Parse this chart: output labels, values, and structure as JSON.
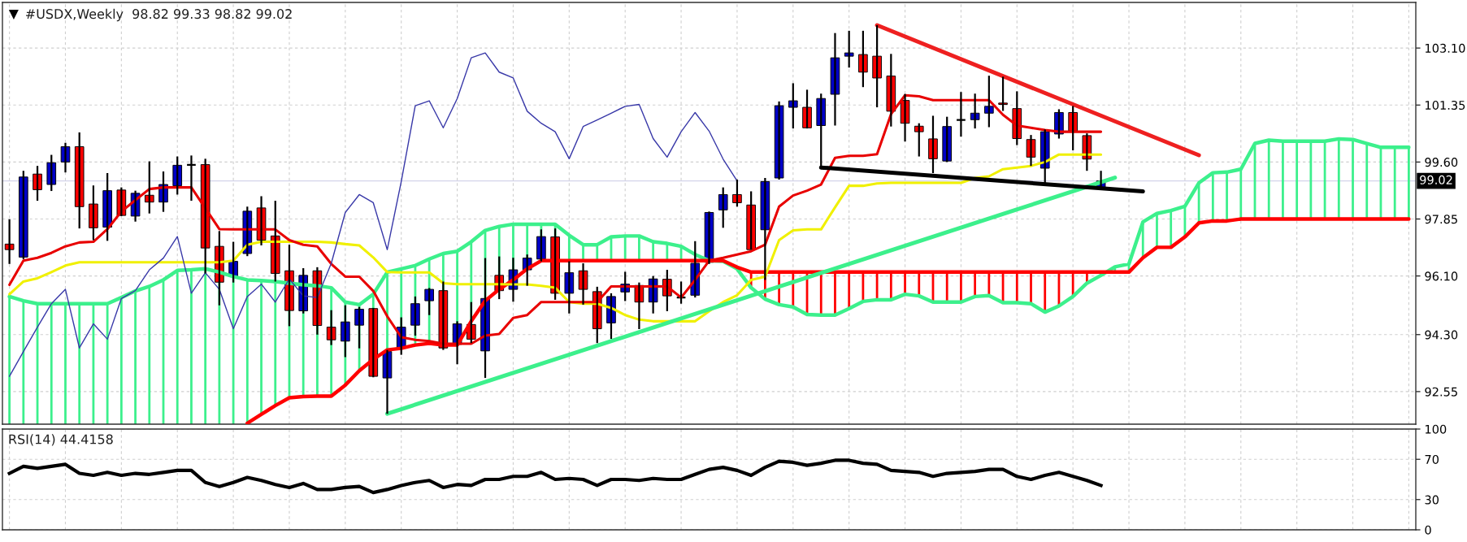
{
  "chart_data": [
    {
      "type": "candlestick",
      "title": "#USDX,Weekly  98.82 99.33 98.82 99.02",
      "categories": [
        null,
        null,
        null,
        null,
        null,
        null,
        null,
        null,
        null,
        null,
        null,
        null,
        null,
        null,
        null,
        null,
        null,
        null,
        null,
        null,
        null,
        null,
        null,
        null,
        null,
        null,
        null,
        null,
        null,
        null,
        null,
        null,
        null,
        null,
        null,
        null,
        null,
        null,
        null,
        null,
        null,
        null,
        null,
        null,
        null,
        null,
        null,
        null,
        null,
        null,
        null,
        null,
        null,
        null,
        null,
        null,
        null,
        null,
        null,
        null,
        null,
        null,
        null,
        null,
        null,
        null,
        null,
        null,
        null,
        null,
        null,
        null,
        null,
        null,
        null,
        null,
        null,
        null,
        null,
        null,
        null,
        null,
        null,
        null,
        null,
        null,
        null,
        null,
        null,
        null,
        null,
        null,
        null,
        null,
        null,
        null,
        null,
        null,
        null,
        null,
        null
      ],
      "ohlc": [
        [
          97.08,
          97.84,
          96.47,
          96.91
        ],
        [
          96.68,
          99.33,
          96.62,
          99.14
        ],
        [
          99.23,
          99.48,
          98.41,
          98.75
        ],
        [
          98.91,
          99.82,
          98.71,
          99.58
        ],
        [
          99.6,
          100.19,
          99.28,
          100.07
        ],
        [
          100.07,
          100.51,
          97.56,
          98.23
        ],
        [
          98.31,
          98.88,
          97.2,
          97.58
        ],
        [
          97.6,
          99.26,
          97.18,
          98.72
        ],
        [
          98.74,
          98.82,
          97.94,
          97.96
        ],
        [
          97.94,
          98.72,
          97.77,
          98.64
        ],
        [
          98.58,
          99.62,
          98.02,
          98.37
        ],
        [
          98.37,
          99.31,
          98.07,
          98.91
        ],
        [
          98.87,
          99.77,
          98.6,
          99.5
        ],
        [
          99.51,
          99.8,
          98.41,
          99.51
        ],
        [
          99.52,
          99.7,
          96.18,
          96.96
        ],
        [
          97.01,
          97.48,
          95.2,
          95.91
        ],
        [
          96.08,
          97.15,
          95.9,
          96.55
        ],
        [
          96.79,
          98.23,
          96.71,
          98.09
        ],
        [
          98.19,
          98.55,
          97.04,
          97.2
        ],
        [
          97.33,
          98.41,
          95.93,
          96.18
        ],
        [
          96.26,
          97.06,
          94.56,
          95.04
        ],
        [
          95.03,
          96.34,
          94.95,
          96.12
        ],
        [
          96.26,
          96.37,
          94.3,
          94.58
        ],
        [
          94.53,
          95.05,
          93.98,
          94.14
        ],
        [
          94.1,
          95.2,
          93.61,
          94.69
        ],
        [
          94.59,
          95.15,
          93.88,
          95.08
        ],
        [
          95.1,
          95.12,
          92.99,
          93.02
        ],
        [
          92.97,
          93.83,
          91.87,
          93.78
        ],
        [
          93.88,
          94.83,
          93.68,
          94.53
        ],
        [
          94.59,
          95.47,
          94.27,
          95.25
        ],
        [
          95.34,
          95.73,
          94.9,
          95.69
        ],
        [
          95.65,
          95.93,
          93.83,
          93.89
        ],
        [
          94.0,
          94.71,
          93.39,
          94.63
        ],
        [
          94.61,
          95.3,
          94.04,
          94.16
        ],
        [
          93.8,
          96.65,
          92.97,
          95.41
        ],
        [
          96.12,
          96.7,
          95.39,
          95.65
        ],
        [
          95.69,
          96.66,
          95.31,
          96.29
        ],
        [
          96.29,
          96.76,
          95.8,
          96.65
        ],
        [
          96.62,
          97.53,
          96.55,
          97.31
        ],
        [
          97.3,
          97.56,
          95.37,
          95.57
        ],
        [
          95.57,
          96.55,
          94.95,
          96.2
        ],
        [
          96.26,
          96.49,
          95.22,
          95.69
        ],
        [
          95.62,
          95.77,
          94.04,
          94.48
        ],
        [
          94.66,
          95.57,
          94.17,
          95.47
        ],
        [
          95.61,
          96.23,
          95.33,
          95.85
        ],
        [
          95.81,
          95.9,
          94.47,
          95.3
        ],
        [
          95.3,
          96.1,
          94.95,
          96.01
        ],
        [
          96.0,
          96.29,
          95.02,
          95.49
        ],
        [
          95.44,
          95.93,
          95.25,
          95.44
        ],
        [
          95.51,
          97.17,
          95.44,
          96.49
        ],
        [
          96.52,
          98.08,
          96.47,
          98.05
        ],
        [
          98.13,
          98.82,
          97.58,
          98.6
        ],
        [
          98.6,
          99.06,
          98.23,
          98.35
        ],
        [
          98.28,
          98.7,
          96.91,
          96.91
        ],
        [
          97.52,
          99.11,
          95.98,
          99.0
        ],
        [
          99.11,
          101.46,
          99.06,
          101.33
        ],
        [
          101.28,
          102.02,
          100.63,
          101.48
        ],
        [
          101.28,
          101.82,
          100.63,
          100.65
        ],
        [
          100.72,
          101.7,
          99.45,
          101.55
        ],
        [
          101.68,
          103.56,
          100.72,
          102.8
        ],
        [
          102.85,
          103.63,
          102.5,
          102.95
        ],
        [
          102.9,
          103.63,
          101.9,
          102.36
        ],
        [
          102.85,
          103.8,
          101.28,
          102.18
        ],
        [
          102.24,
          102.92,
          100.69,
          101.16
        ],
        [
          101.49,
          101.69,
          100.23,
          100.79
        ],
        [
          100.7,
          100.79,
          99.77,
          100.53
        ],
        [
          100.31,
          101.02,
          99.26,
          99.7
        ],
        [
          99.63,
          100.99,
          99.6,
          100.69
        ],
        [
          100.89,
          101.75,
          100.38,
          100.89
        ],
        [
          100.9,
          101.7,
          100.63,
          101.1
        ],
        [
          101.1,
          102.25,
          100.67,
          101.31
        ],
        [
          101.41,
          102.22,
          101.17,
          101.37
        ],
        [
          101.24,
          101.77,
          100.12,
          100.32
        ],
        [
          100.29,
          100.43,
          99.48,
          99.75
        ],
        [
          99.41,
          100.6,
          98.95,
          100.53
        ],
        [
          100.46,
          101.22,
          100.32,
          101.12
        ],
        [
          101.12,
          101.32,
          99.96,
          100.55
        ],
        [
          100.41,
          100.48,
          99.33,
          99.69
        ],
        [
          98.82,
          99.33,
          98.82,
          99.02
        ],
        null,
        null,
        null,
        null,
        null,
        null,
        null,
        null,
        null,
        null,
        null,
        null,
        null,
        null,
        null,
        null,
        null,
        null,
        null,
        null,
        null,
        null
      ],
      "colors": [
        "#ff0000",
        "#0000c8",
        "#ff0000",
        "#0000c8",
        "#0000c8",
        "#ff0000",
        "#ff0000",
        "#0000c8",
        "#ff0000",
        "#0000c8",
        "#ff0000",
        "#0000c8",
        "#0000c8",
        "#000000",
        "#ff0000",
        "#ff0000",
        "#0000c8",
        "#0000c8",
        "#ff0000",
        "#ff0000",
        "#ff0000",
        "#0000c8",
        "#ff0000",
        "#ff0000",
        "#0000c8",
        "#0000c8",
        "#ff0000",
        "#0000c8",
        "#0000c8",
        "#0000c8",
        "#0000c8",
        "#ff0000",
        "#0000c8",
        "#ff0000",
        "#0000c8",
        "#ff0000",
        "#0000c8",
        "#0000c8",
        "#0000c8",
        "#ff0000",
        "#0000c8",
        "#ff0000",
        "#ff0000",
        "#0000c8",
        "#0000c8",
        "#ff0000",
        "#0000c8",
        "#ff0000",
        "#000000",
        "#0000c8",
        "#0000c8",
        "#0000c8",
        "#ff0000",
        "#ff0000",
        "#0000c8",
        "#0000c8",
        "#0000c8",
        "#ff0000",
        "#0000c8",
        "#0000c8",
        "#0000c8",
        "#ff0000",
        "#ff0000",
        "#ff0000",
        "#ff0000",
        "#ff0000",
        "#ff0000",
        "#0000c8",
        "#000000",
        "#0000c8",
        "#0000c8",
        "#ff0000",
        "#ff0000",
        "#ff0000",
        "#0000c8",
        "#0000c8",
        "#ff0000",
        "#ff0000",
        "#0000c8",
        null,
        null,
        null,
        null,
        null,
        null,
        null,
        null,
        null,
        null,
        null,
        null,
        null,
        null,
        null,
        null,
        null,
        null,
        null,
        null,
        null,
        null
      ],
      "series": [
        {
          "type": "line",
          "color": "#3cf08c",
          "values": [
            95.47,
            95.34,
            95.25,
            95.25,
            95.25,
            95.25,
            95.25,
            95.25,
            95.44,
            95.64,
            95.78,
            95.98,
            96.27,
            96.29,
            96.32,
            96.22,
            96.08,
            95.98,
            95.96,
            95.93,
            95.88,
            95.83,
            95.8,
            95.74,
            95.3,
            95.22,
            95.54,
            96.22,
            96.32,
            96.42,
            96.62,
            96.79,
            96.86,
            97.15,
            97.5,
            97.62,
            97.69,
            97.69,
            97.69,
            97.69,
            97.35,
            97.06,
            97.06,
            97.3,
            97.33,
            97.33,
            97.15,
            97.1,
            97.01,
            96.76,
            96.57,
            96.55,
            96.32,
            95.74,
            95.39,
            95.22,
            95.15,
            94.92,
            94.9,
            94.9,
            95.1,
            95.32,
            95.37,
            95.37,
            95.54,
            95.49,
            95.3,
            95.3,
            95.3,
            95.47,
            95.5,
            95.28,
            95.28,
            95.25,
            94.99,
            95.18,
            95.47,
            95.88,
            96.12,
            96.38,
            96.47,
            97.76,
            98.02,
            98.11,
            98.24,
            98.96,
            99.27,
            99.29,
            99.38,
            100.17,
            100.27,
            100.24,
            100.24,
            100.24,
            100.24,
            100.31,
            100.29,
            100.17,
            100.05,
            100.05,
            100.05
          ]
        },
        {
          "type": "line",
          "color": "#ff0000",
          "values": [
            null,
            null,
            null,
            null,
            null,
            null,
            null,
            null,
            null,
            null,
            null,
            null,
            null,
            null,
            null,
            null,
            null,
            91.58,
            91.85,
            92.12,
            92.36,
            92.4,
            92.41,
            92.41,
            92.75,
            93.19,
            93.54,
            93.83,
            93.88,
            93.98,
            94.03,
            93.98,
            93.98,
            94.71,
            95.34,
            95.69,
            95.98,
            96.32,
            96.57,
            96.57,
            96.57,
            96.57,
            96.57,
            96.57,
            96.57,
            96.57,
            96.57,
            96.57,
            96.57,
            96.57,
            96.57,
            96.57,
            96.37,
            96.22,
            96.22,
            96.22,
            96.22,
            96.22,
            96.22,
            96.22,
            96.22,
            96.22,
            96.22,
            96.22,
            96.22,
            96.22,
            96.22,
            96.22,
            96.22,
            96.22,
            96.22,
            96.22,
            96.22,
            96.22,
            96.22,
            96.22,
            96.22,
            96.22,
            96.22,
            96.22,
            96.22,
            96.66,
            96.98,
            96.98,
            97.3,
            97.73,
            97.79,
            97.79,
            97.85,
            97.85,
            97.85,
            97.85,
            97.85,
            97.85,
            97.85,
            97.85,
            97.85,
            97.85,
            97.85,
            97.85,
            97.85
          ]
        },
        {
          "type": "line",
          "color": "#f0f000",
          "values": [
            95.54,
            95.93,
            96.03,
            96.22,
            96.42,
            96.52,
            96.52,
            96.52,
            96.52,
            96.52,
            96.52,
            96.52,
            96.52,
            96.52,
            96.52,
            96.52,
            96.57,
            97.06,
            97.15,
            97.15,
            97.15,
            97.15,
            97.15,
            97.13,
            97.08,
            97.04,
            96.67,
            96.22,
            96.21,
            96.21,
            96.21,
            95.88,
            95.85,
            95.85,
            95.85,
            95.85,
            95.84,
            95.84,
            95.8,
            95.74,
            95.3,
            95.25,
            95.25,
            95.12,
            94.9,
            94.76,
            94.71,
            94.71,
            94.71,
            94.71,
            95.02,
            95.3,
            95.51,
            95.98,
            96.08,
            97.2,
            97.5,
            97.53,
            97.53,
            98.21,
            98.87,
            98.87,
            98.94,
            98.96,
            98.96,
            98.96,
            98.96,
            98.96,
            98.96,
            99.11,
            99.16,
            99.38,
            99.43,
            99.48,
            99.6,
            99.83,
            99.83,
            99.83,
            99.83,
            null,
            null,
            null,
            null,
            null,
            null,
            null,
            null,
            null,
            null,
            null,
            null,
            null,
            null,
            null,
            null,
            null,
            null,
            null,
            null,
            null,
            null
          ]
        },
        {
          "type": "line",
          "color": "#e80000",
          "values": [
            95.83,
            96.57,
            96.66,
            96.81,
            97.01,
            97.13,
            97.15,
            97.54,
            98.08,
            98.43,
            98.77,
            98.82,
            98.82,
            98.82,
            98.18,
            97.54,
            97.53,
            97.53,
            97.53,
            97.53,
            97.2,
            97.06,
            97.01,
            96.47,
            96.08,
            96.08,
            95.64,
            94.86,
            94.22,
            94.14,
            94.1,
            94.02,
            94.02,
            94.02,
            94.27,
            94.32,
            94.81,
            94.9,
            95.3,
            95.3,
            95.3,
            95.3,
            95.3,
            95.78,
            95.78,
            95.78,
            95.78,
            95.78,
            95.44,
            95.98,
            96.57,
            96.66,
            96.76,
            96.86,
            97.06,
            98.23,
            98.57,
            98.72,
            98.91,
            99.73,
            99.79,
            99.79,
            99.84,
            101.07,
            101.65,
            101.62,
            101.5,
            101.5,
            101.5,
            101.5,
            101.5,
            101.05,
            100.72,
            100.65,
            100.58,
            100.53,
            100.53,
            100.53,
            100.53,
            null,
            null,
            null,
            null,
            null,
            null,
            null,
            null,
            null,
            null,
            null,
            null,
            null,
            null,
            null,
            null,
            null,
            null,
            null,
            null,
            null,
            null
          ]
        },
        {
          "type": "line",
          "color": "#3838a8",
          "values": [
            93.02,
            93.78,
            94.53,
            95.25,
            95.69,
            93.89,
            94.63,
            94.16,
            95.41,
            95.65,
            96.29,
            96.65,
            97.31,
            95.57,
            96.2,
            95.69,
            94.48,
            95.47,
            95.85,
            95.3,
            96.01,
            95.49,
            95.44,
            96.49,
            98.05,
            98.6,
            98.35,
            96.91,
            99.0,
            101.33,
            101.48,
            100.65,
            101.55,
            102.8,
            102.95,
            102.36,
            102.18,
            101.16,
            100.79,
            100.53,
            99.7,
            100.69,
            100.89,
            101.1,
            101.31,
            101.37,
            100.32,
            99.75,
            100.53,
            101.12,
            100.55,
            99.69,
            99.02,
            null,
            null,
            null,
            null,
            null,
            null,
            null,
            null,
            null,
            null,
            null,
            null,
            null,
            null,
            null,
            null,
            null,
            null,
            null,
            null,
            null,
            null,
            null,
            null,
            null,
            null,
            null,
            null,
            null,
            null,
            null,
            null,
            null,
            null,
            null,
            null,
            null,
            null,
            null,
            null,
            null,
            null,
            null,
            null,
            null,
            null,
            null,
            null
          ]
        },
        {
          "type": "line",
          "color": "#3cf08c",
          "values": [
            null,
            null,
            null,
            null,
            null,
            null,
            null,
            null,
            null,
            null,
            null,
            null,
            null,
            null,
            null,
            null,
            null,
            null,
            null,
            null,
            null,
            null,
            null,
            null,
            null,
            null,
            null,
            91.87,
            null,
            null,
            null,
            null,
            null,
            null,
            null,
            null,
            null,
            null,
            null,
            null,
            null,
            null,
            null,
            null,
            null,
            null,
            null,
            null,
            null,
            null,
            null,
            null,
            null,
            null,
            null,
            null,
            null,
            null,
            null,
            null,
            null,
            null,
            null,
            null,
            null,
            null,
            null,
            null,
            null,
            null,
            null,
            null,
            null,
            null,
            null,
            null,
            null,
            null,
            null,
            99.12,
            null,
            null,
            null,
            null,
            null,
            null,
            null,
            null,
            null,
            null,
            null,
            null,
            null,
            null,
            null,
            null,
            null,
            null,
            null,
            null,
            null
          ]
        },
        {
          "type": "line",
          "color": "#ee2020",
          "values": [
            null,
            null,
            null,
            null,
            null,
            null,
            null,
            null,
            null,
            null,
            null,
            null,
            null,
            null,
            null,
            null,
            null,
            null,
            null,
            null,
            null,
            null,
            null,
            null,
            null,
            null,
            null,
            null,
            null,
            null,
            null,
            null,
            null,
            null,
            null,
            null,
            null,
            null,
            null,
            null,
            null,
            null,
            null,
            null,
            null,
            null,
            null,
            null,
            null,
            null,
            null,
            null,
            null,
            null,
            null,
            null,
            null,
            null,
            null,
            null,
            null,
            null,
            103.8,
            null,
            null,
            null,
            null,
            null,
            null,
            null,
            null,
            null,
            null,
            null,
            null,
            null,
            null,
            null,
            null,
            null,
            null,
            null,
            null,
            null,
            null,
            99.81,
            null,
            null,
            null,
            null,
            null,
            null,
            null,
            null,
            null,
            null,
            null,
            null,
            null,
            null,
            null
          ]
        },
        {
          "type": "line",
          "color": "#000000",
          "values": [
            null,
            null,
            null,
            null,
            null,
            null,
            null,
            null,
            null,
            null,
            null,
            null,
            null,
            null,
            null,
            null,
            null,
            null,
            null,
            null,
            null,
            null,
            null,
            null,
            null,
            null,
            null,
            null,
            null,
            null,
            null,
            null,
            null,
            null,
            null,
            null,
            null,
            null,
            null,
            null,
            null,
            null,
            null,
            null,
            null,
            null,
            null,
            null,
            null,
            null,
            null,
            null,
            null,
            null,
            null,
            null,
            null,
            null,
            99.43,
            null,
            null,
            null,
            null,
            null,
            null,
            null,
            null,
            null,
            null,
            null,
            null,
            null,
            null,
            null,
            null,
            null,
            null,
            null,
            null,
            null,
            null,
            98.7,
            null,
            null,
            null,
            null,
            null,
            null,
            null,
            null,
            null,
            null,
            null,
            null,
            null,
            null,
            null,
            null,
            null,
            null,
            null
          ]
        }
      ],
      "ylim": [
        91.55,
        104.5
      ],
      "yticks": [
        92.55,
        {
          "value": 94.3,
          "label": "94.30"
        },
        {
          "value": 96.1,
          "label": "96.10"
        },
        97.85,
        {
          "value": 99.6,
          "label": "99.60"
        },
        101.35,
        {
          "value": 103.1,
          "label": "103.10"
        }
      ],
      "ref_lines": [
        {
          "axis": "y",
          "value": 99.02,
          "label": "99.02",
          "color": "#d4d4ea"
        }
      ],
      "grid": true,
      "tick_labels": "y"
    },
    {
      "type": "line",
      "title": "RSI(14) 44.4158",
      "categories": [
        null,
        null,
        null,
        null,
        null,
        null,
        null,
        null,
        null,
        null,
        null,
        null,
        null,
        null,
        null,
        null,
        null,
        null,
        null,
        null,
        null,
        null,
        null,
        null,
        null,
        null,
        null,
        null,
        null,
        null,
        null,
        null,
        null,
        null,
        null,
        null,
        null,
        null,
        null,
        null,
        null,
        null,
        null,
        null,
        null,
        null,
        null,
        null,
        null,
        null,
        null,
        null,
        null,
        null,
        null,
        null,
        null,
        null,
        null,
        null,
        null,
        null,
        null,
        null,
        null,
        null,
        null,
        null,
        null,
        null,
        null,
        null,
        null,
        null,
        null,
        null,
        null,
        null,
        null,
        null,
        null,
        null,
        null,
        null,
        null,
        null,
        null,
        null,
        null,
        null,
        null,
        null,
        null,
        null,
        null,
        null,
        null,
        null,
        null,
        null,
        null
      ],
      "series": [
        {
          "color": "#000000",
          "values": [
            56,
            63,
            61,
            63,
            65,
            56,
            54,
            57,
            54,
            56,
            55,
            57,
            59,
            59,
            47,
            43,
            47,
            52,
            49,
            45,
            42,
            46,
            40,
            40,
            42,
            43,
            37,
            40,
            44,
            47,
            49,
            42,
            45,
            44,
            50,
            50,
            53,
            53,
            57,
            50,
            51,
            50,
            44,
            50,
            50,
            49,
            51,
            50,
            50,
            55,
            60,
            62,
            59,
            54,
            62,
            68,
            67,
            64,
            66,
            69,
            69,
            66,
            65,
            59,
            58,
            57,
            53,
            56,
            57,
            58,
            60,
            60,
            53,
            50,
            54,
            57,
            53,
            49,
            44,
            null,
            null,
            null,
            null,
            null,
            null,
            null,
            null,
            null,
            null,
            null,
            null,
            null,
            null,
            null,
            null,
            null,
            null,
            null,
            null,
            null,
            null
          ]
        }
      ],
      "ylim": [
        0,
        100
      ],
      "yticks": [
        0,
        30,
        70,
        100
      ],
      "grid": true,
      "tick_labels": "y"
    }
  ]
}
